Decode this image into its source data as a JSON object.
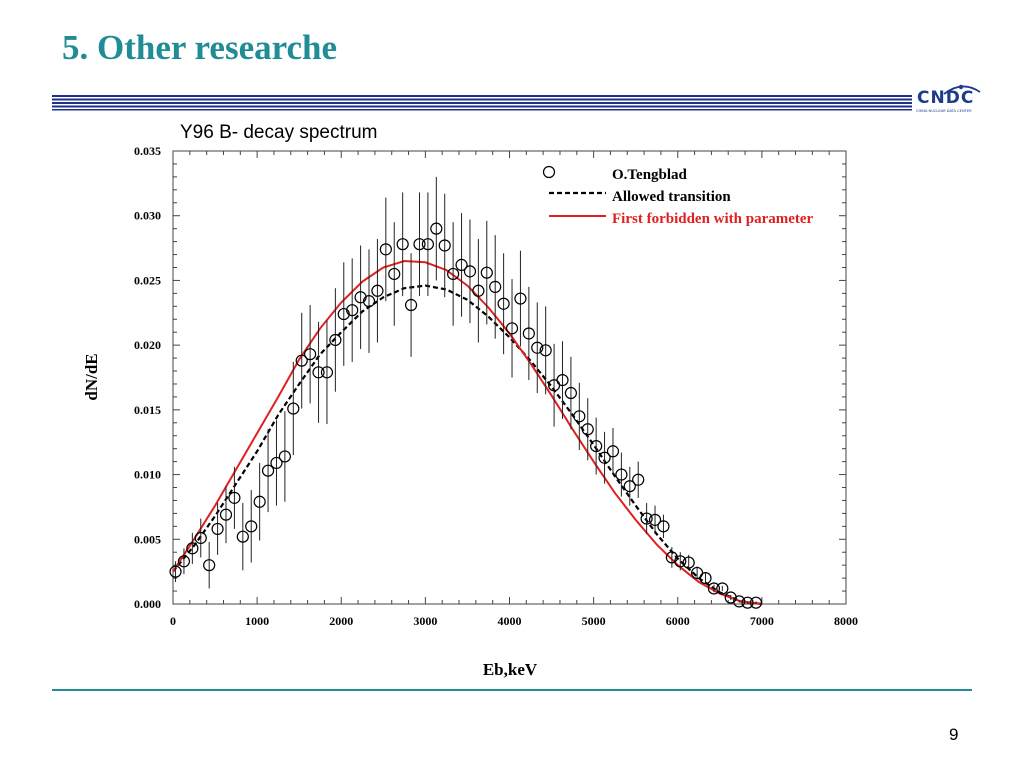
{
  "slide": {
    "title": "5. Other researche",
    "page_number": "9",
    "logo": {
      "text": "CNDC",
      "subtext": "CHINA NUCLEAR DATA CENTER"
    },
    "accent_color": "#1f8c96",
    "header_rule_color": "#1e2f8c"
  },
  "chart_data": {
    "type": "scatter",
    "title": "Y96 B- decay spectrum",
    "xlabel": "Eb,keV",
    "ylabel": "dN/dE",
    "xlim": [
      0,
      8000
    ],
    "ylim": [
      0,
      0.035
    ],
    "x_ticks": [
      "0",
      "1000",
      "2000",
      "3000",
      "4000",
      "5000",
      "6000",
      "7000",
      "8000"
    ],
    "y_ticks": [
      "0.000",
      "0.005",
      "0.010",
      "0.015",
      "0.020",
      "0.025",
      "0.030",
      "0.035"
    ],
    "legend_position": "top-right",
    "grid": false,
    "series": [
      {
        "name": "O.Tengblad",
        "kind": "points",
        "color": "#000000",
        "x": [
          30,
          130,
          230,
          330,
          430,
          530,
          630,
          730,
          830,
          930,
          1030,
          1130,
          1230,
          1330,
          1430,
          1530,
          1630,
          1730,
          1830,
          1930,
          2030,
          2130,
          2230,
          2330,
          2430,
          2530,
          2630,
          2730,
          2830,
          2930,
          3030,
          3130,
          3230,
          3330,
          3430,
          3530,
          3630,
          3730,
          3830,
          3930,
          4030,
          4130,
          4230,
          4330,
          4430,
          4530,
          4630,
          4730,
          4830,
          4930,
          5030,
          5130,
          5230,
          5330,
          5430,
          5530,
          5630,
          5730,
          5830,
          5930,
          6030,
          6130,
          6230,
          6330,
          6430,
          6530,
          6630,
          6730,
          6830,
          6930
        ],
        "y": [
          0.0025,
          0.0033,
          0.0043,
          0.0051,
          0.003,
          0.0058,
          0.0069,
          0.0082,
          0.0052,
          0.006,
          0.0079,
          0.0103,
          0.0109,
          0.0114,
          0.0151,
          0.0188,
          0.0193,
          0.0179,
          0.0179,
          0.0204,
          0.0224,
          0.0227,
          0.0237,
          0.0234,
          0.0242,
          0.0274,
          0.0255,
          0.0278,
          0.0231,
          0.0278,
          0.0278,
          0.029,
          0.0277,
          0.0255,
          0.0262,
          0.0257,
          0.0242,
          0.0256,
          0.0245,
          0.0232,
          0.0213,
          0.0236,
          0.0209,
          0.0198,
          0.0196,
          0.0169,
          0.0173,
          0.0163,
          0.0145,
          0.0135,
          0.0122,
          0.0113,
          0.0118,
          0.01,
          0.0091,
          0.0096,
          0.0066,
          0.0065,
          0.006,
          0.0036,
          0.0033,
          0.0032,
          0.0024,
          0.002,
          0.0012,
          0.0012,
          0.0005,
          0.0002,
          0.0001,
          0.0001
        ],
        "yerr": [
          0.0008,
          0.001,
          0.0012,
          0.0015,
          0.0018,
          0.002,
          0.0022,
          0.0024,
          0.0026,
          0.0028,
          0.003,
          0.0032,
          0.0033,
          0.0035,
          0.0036,
          0.0037,
          0.0038,
          0.0039,
          0.004,
          0.004,
          0.004,
          0.004,
          0.004,
          0.004,
          0.004,
          0.004,
          0.004,
          0.004,
          0.004,
          0.004,
          0.004,
          0.004,
          0.004,
          0.004,
          0.004,
          0.004,
          0.004,
          0.004,
          0.004,
          0.0039,
          0.0038,
          0.0037,
          0.0036,
          0.0035,
          0.0034,
          0.0032,
          0.003,
          0.0028,
          0.0026,
          0.0024,
          0.0022,
          0.002,
          0.0018,
          0.0017,
          0.0015,
          0.0014,
          0.0012,
          0.0011,
          0.0009,
          0.0008,
          0.0007,
          0.0006,
          0.0005,
          0.0004,
          0.0003,
          0.0002,
          0.0002,
          0.0001,
          0.0001,
          0.0001
        ]
      },
      {
        "name": "Allowed transition",
        "kind": "line",
        "style": "dashed",
        "color": "#000000",
        "x": [
          0,
          250,
          500,
          750,
          1000,
          1250,
          1500,
          1750,
          2000,
          2250,
          2500,
          2750,
          3000,
          3250,
          3500,
          3750,
          4000,
          4250,
          4500,
          4750,
          5000,
          5250,
          5500,
          5750,
          6000,
          6250,
          6500,
          6750,
          7000
        ],
        "y": [
          0.0025,
          0.0045,
          0.0068,
          0.0093,
          0.0118,
          0.0146,
          0.017,
          0.0193,
          0.021,
          0.0226,
          0.0237,
          0.0244,
          0.0246,
          0.0243,
          0.0235,
          0.0222,
          0.0206,
          0.0188,
          0.0168,
          0.0146,
          0.0123,
          0.0099,
          0.0076,
          0.0054,
          0.0035,
          0.002,
          0.0009,
          0.0002,
          0.0
        ]
      },
      {
        "name": "First forbidden with parameter",
        "kind": "line",
        "style": "solid",
        "color": "#e02020",
        "x": [
          0,
          250,
          500,
          750,
          1000,
          1250,
          1500,
          1750,
          2000,
          2250,
          2500,
          2750,
          3000,
          3250,
          3500,
          3750,
          4000,
          4250,
          4500,
          4750,
          5000,
          5250,
          5500,
          5750,
          6000,
          6250,
          6500,
          6750,
          7000
        ],
        "y": [
          0.0025,
          0.005,
          0.0076,
          0.0104,
          0.0132,
          0.016,
          0.0189,
          0.0213,
          0.0233,
          0.0249,
          0.026,
          0.0265,
          0.0264,
          0.0258,
          0.0246,
          0.0229,
          0.0209,
          0.0186,
          0.0161,
          0.0135,
          0.011,
          0.0086,
          0.0065,
          0.0046,
          0.003,
          0.0017,
          0.0008,
          0.0002,
          0.0
        ]
      }
    ]
  }
}
